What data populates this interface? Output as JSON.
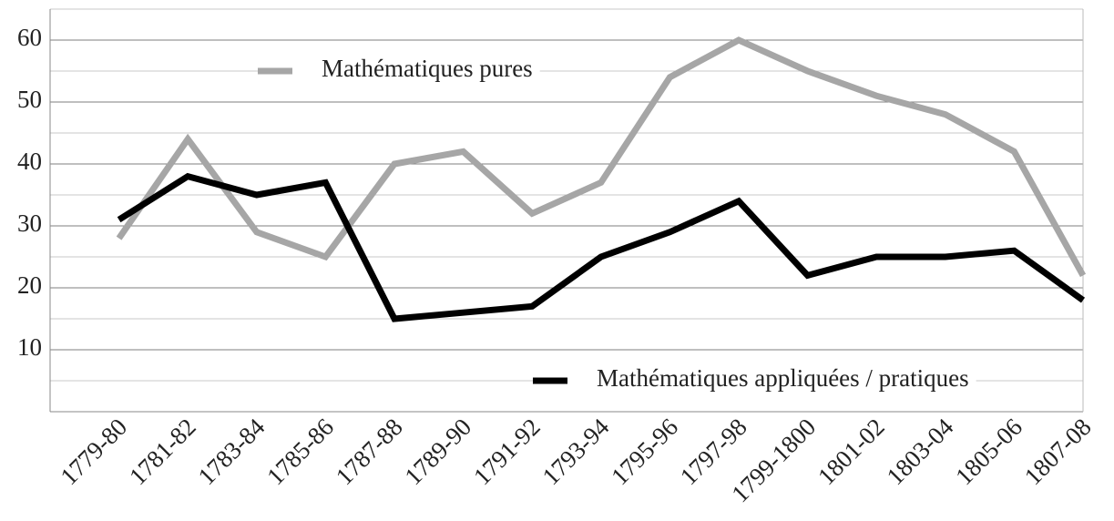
{
  "chart_data": {
    "type": "line",
    "categories": [
      "1779-80",
      "1781-82",
      "1783-84",
      "1785-86",
      "1787-88",
      "1789-90",
      "1791-92",
      "1793-94",
      "1795-96",
      "1797-98",
      "1799-1800",
      "1801-02",
      "1803-04",
      "1805-06",
      "1807-08"
    ],
    "series": [
      {
        "name": "Mathématiques pures",
        "color": "#a6a6a6",
        "values": [
          28,
          44,
          29,
          25,
          40,
          42,
          32,
          37,
          54,
          60,
          55,
          51,
          48,
          42,
          22
        ]
      },
      {
        "name": "Mathématiques appliquées / pratiques",
        "color": "#000000",
        "values": [
          31,
          38,
          35,
          37,
          15,
          16,
          17,
          25,
          29,
          34,
          22,
          25,
          25,
          26,
          18
        ]
      }
    ],
    "ylim": [
      0,
      65
    ],
    "yticks": [
      10,
      20,
      30,
      40,
      50,
      60
    ],
    "minor_yticks": [
      5,
      15,
      25,
      35,
      45,
      55,
      65
    ],
    "grid": true
  }
}
